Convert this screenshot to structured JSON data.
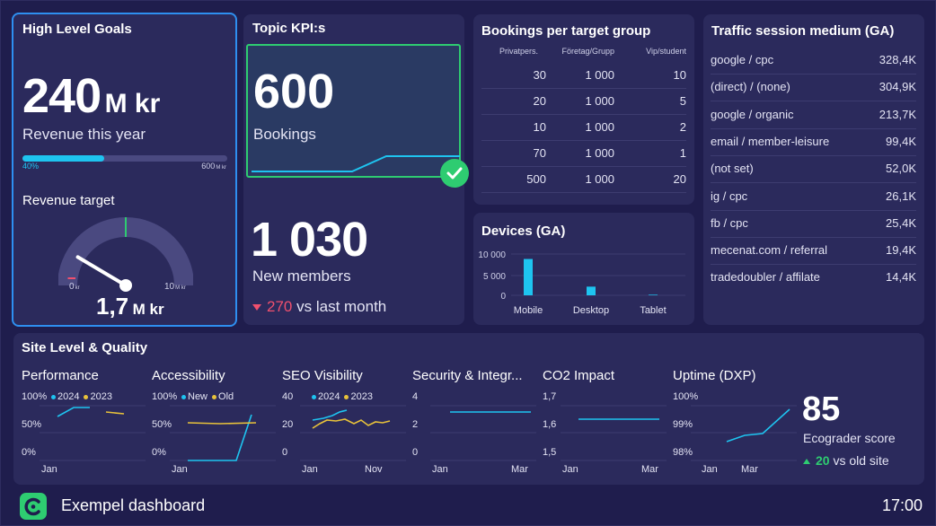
{
  "colors": {
    "cyan": "#1ec4f0",
    "yellow": "#e8c23a",
    "green": "#2ecc71",
    "red": "#f0506e",
    "card": "#2b2a5c",
    "bg": "#1f1d4d"
  },
  "goals": {
    "title": "High Level Goals",
    "revenue_value": "240",
    "revenue_unit": "M kr",
    "revenue_label": "Revenue this year",
    "progress_pct_label": "40%",
    "progress_fraction": 0.4,
    "progress_max": "600",
    "progress_max_unit": "M kr",
    "target_title": "Revenue target",
    "gauge_min": "0",
    "gauge_min_unit": "kr",
    "gauge_max": "10",
    "gauge_max_unit": "M kr",
    "gauge_value": "1,7",
    "gauge_value_unit": "M kr",
    "gauge_fraction": 0.17
  },
  "kpi": {
    "title": "Topic KPI:s",
    "bookings_value": "600",
    "bookings_label": "Bookings",
    "members_value": "1 030",
    "members_label": "New members",
    "delta_value": "270",
    "delta_text": "vs last month",
    "check_icon": "check-circle-icon"
  },
  "bookings": {
    "title": "Bookings per target group",
    "headers": [
      "Privatpers.",
      "Företag/Grupp",
      "Vip/student"
    ],
    "rows": [
      [
        "30",
        "1 000",
        "10"
      ],
      [
        "20",
        "1 000",
        "5"
      ],
      [
        "10",
        "1 000",
        "2"
      ],
      [
        "70",
        "1 000",
        "1"
      ],
      [
        "500",
        "1 000",
        "20"
      ]
    ]
  },
  "devices": {
    "title": "Devices (GA)",
    "chart_data": {
      "type": "bar",
      "categories": [
        "Mobile",
        "Desktop",
        "Tablet"
      ],
      "values": [
        8800,
        2100,
        150
      ],
      "yticks": [
        "10 000",
        "5 000",
        "0"
      ],
      "ylim": [
        0,
        10000
      ]
    }
  },
  "traffic": {
    "title": "Traffic session medium (GA)",
    "rows": [
      {
        "label": "google / cpc",
        "value": "328,4K"
      },
      {
        "label": "(direct) / (none)",
        "value": "304,9K"
      },
      {
        "label": "google / organic",
        "value": "213,7K"
      },
      {
        "label": "email / member-leisure",
        "value": "99,4K"
      },
      {
        "label": "(not set)",
        "value": "52,0K"
      },
      {
        "label": "ig / cpc",
        "value": "26,1K"
      },
      {
        "label": "fb / cpc",
        "value": "25,4K"
      },
      {
        "label": "mecenat.com / referral",
        "value": "19,4K"
      },
      {
        "label": "tradedoubler / affilate",
        "value": "14,4K"
      }
    ]
  },
  "site": {
    "title": "Site Level & Quality",
    "charts": [
      {
        "title": "Performance",
        "yticks": [
          "100%",
          "50%",
          "0%"
        ],
        "xticks": [
          "Jan",
          ""
        ],
        "legend": [
          {
            "name": "2024",
            "color": "#1ec4f0"
          },
          {
            "name": "2023",
            "color": "#e8c23a"
          }
        ]
      },
      {
        "title": "Accessibility",
        "yticks": [
          "100%",
          "50%",
          "0%"
        ],
        "xticks": [
          "Jan",
          ""
        ],
        "legend": [
          {
            "name": "New",
            "color": "#1ec4f0"
          },
          {
            "name": "Old",
            "color": "#e8c23a"
          }
        ]
      },
      {
        "title": "SEO Visibility",
        "yticks": [
          "40",
          "20",
          "0"
        ],
        "xticks": [
          "Jan",
          "Nov"
        ],
        "legend": [
          {
            "name": "2024",
            "color": "#1ec4f0"
          },
          {
            "name": "2023",
            "color": "#e8c23a"
          }
        ]
      },
      {
        "title": "Security & Integr...",
        "yticks": [
          "4",
          "2",
          "0"
        ],
        "xticks": [
          "Jan",
          "Mar"
        ],
        "legend": []
      },
      {
        "title": "CO2 Impact",
        "yticks": [
          "1,7",
          "1,6",
          "1,5"
        ],
        "xticks": [
          "Jan",
          "Mar"
        ],
        "legend": []
      },
      {
        "title": "Uptime (DXP)",
        "yticks": [
          "100%",
          "99%",
          "98%"
        ],
        "xticks": [
          "Jan",
          "Mar"
        ],
        "legend": []
      }
    ],
    "eco_value": "85",
    "eco_label": "Ecograder score",
    "eco_delta": "20",
    "eco_delta_text": "vs old site"
  },
  "footer": {
    "logo_icon": "brand-logo-icon",
    "app_name": "Exempel dashboard",
    "time": "17:00"
  }
}
